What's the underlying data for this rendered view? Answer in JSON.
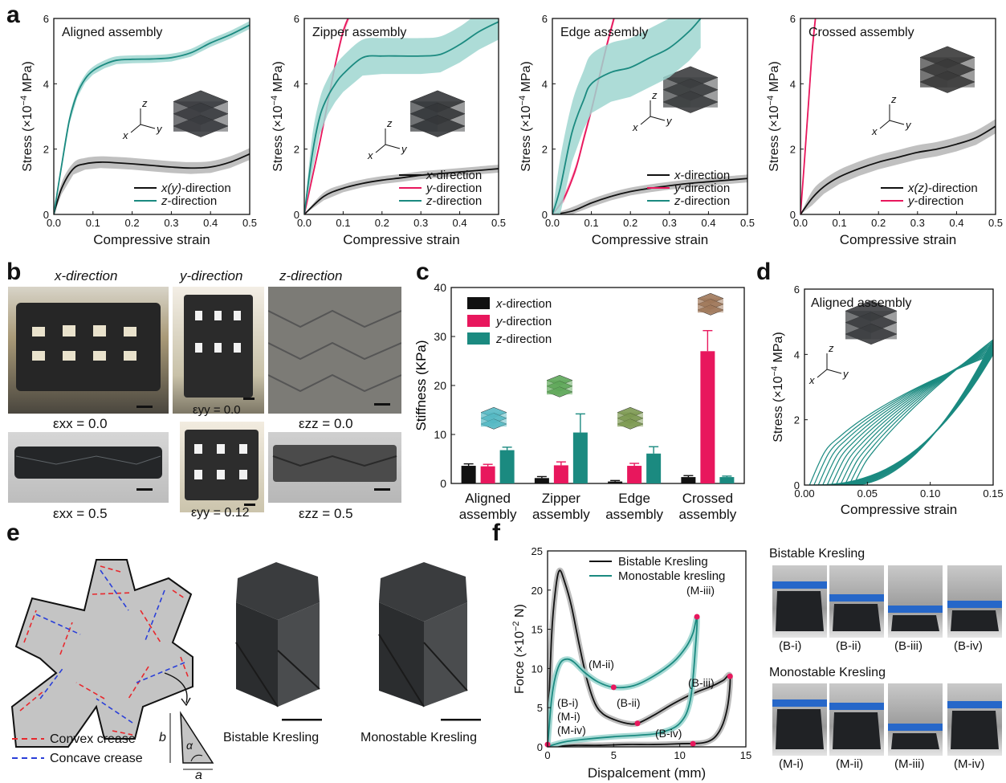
{
  "panels": {
    "a": "a",
    "b": "b",
    "c": "c",
    "d": "d",
    "e": "e",
    "f": "f"
  },
  "common": {
    "xlabel_strain": "Compressive strain",
    "ylabel_stress": "Stress (×10",
    "ylabel_exp": "−4",
    "ylabel_unit": " MPa)",
    "series_colors": {
      "x": "#111111",
      "y": "#e8175d",
      "z": "#1b8a80"
    },
    "band_colors": {
      "x": "#b5b5b5",
      "y": "#f7a8c3",
      "z": "#9fd6d0"
    }
  },
  "chart_data": [
    {
      "id": "a1",
      "type": "line",
      "title": "Aligned assembly",
      "xlabel": "Compressive strain",
      "ylabel": "Stress (×10⁻⁴ MPa)",
      "xlim": [
        0,
        0.5
      ],
      "ylim": [
        0,
        6
      ],
      "xticks": [
        "0.0",
        "0.1",
        "0.2",
        "0.3",
        "0.4",
        "0.5"
      ],
      "yticks": [
        "0",
        "2",
        "4",
        "6"
      ],
      "legend": "bottom-right",
      "series": [
        {
          "name": "x(y)-direction",
          "color": "x",
          "x": [
            0,
            0.02,
            0.05,
            0.08,
            0.12,
            0.16,
            0.2,
            0.25,
            0.3,
            0.35,
            0.4,
            0.45,
            0.5
          ],
          "y": [
            0,
            0.8,
            1.4,
            1.55,
            1.6,
            1.58,
            1.55,
            1.5,
            1.45,
            1.42,
            1.45,
            1.6,
            1.85
          ],
          "band": 0.18
        },
        {
          "name": "z-direction",
          "color": "z",
          "x": [
            0,
            0.02,
            0.04,
            0.06,
            0.08,
            0.1,
            0.13,
            0.16,
            0.2,
            0.25,
            0.3,
            0.35,
            0.4,
            0.45,
            0.5
          ],
          "y": [
            0,
            1.5,
            2.9,
            3.7,
            4.15,
            4.4,
            4.6,
            4.72,
            4.75,
            4.76,
            4.8,
            4.95,
            5.25,
            5.5,
            5.8
          ],
          "band": 0.12
        }
      ]
    },
    {
      "id": "a2",
      "type": "line",
      "title": "Zipper assembly",
      "xlabel": "Compressive strain",
      "ylabel": "Stress (×10⁻⁴ MPa)",
      "xlim": [
        0,
        0.5
      ],
      "ylim": [
        0,
        6
      ],
      "xticks": [
        "0.0",
        "0.1",
        "0.2",
        "0.3",
        "0.4",
        "0.5"
      ],
      "yticks": [
        "0",
        "2",
        "4",
        "6"
      ],
      "legend": "bottom-right",
      "series": [
        {
          "name": "x-direction",
          "color": "x",
          "x": [
            0,
            0.05,
            0.1,
            0.15,
            0.2,
            0.25,
            0.3,
            0.35,
            0.4,
            0.45,
            0.5
          ],
          "y": [
            0,
            0.55,
            0.8,
            0.95,
            1.05,
            1.12,
            1.2,
            1.25,
            1.3,
            1.35,
            1.4
          ],
          "band": 0.12
        },
        {
          "name": "y-direction",
          "color": "y",
          "x": [
            0,
            0.02,
            0.04,
            0.06,
            0.08,
            0.1,
            0.12
          ],
          "y": [
            0,
            1.1,
            2.2,
            3.4,
            4.6,
            5.6,
            6.2
          ],
          "band": 0.1
        },
        {
          "name": "z-direction",
          "color": "z",
          "x": [
            0,
            0.02,
            0.04,
            0.06,
            0.08,
            0.1,
            0.15,
            0.2,
            0.25,
            0.3,
            0.35,
            0.4,
            0.45,
            0.5
          ],
          "y": [
            0,
            1.8,
            3.0,
            3.6,
            4.0,
            4.3,
            4.8,
            4.85,
            4.85,
            4.85,
            4.9,
            5.2,
            5.6,
            5.9
          ],
          "band": 0.55
        }
      ]
    },
    {
      "id": "a3",
      "type": "line",
      "title": "Edge assembly",
      "xlabel": "Compressive strain",
      "ylabel": "Stress (×10⁻⁴ MPa)",
      "xlim": [
        0,
        0.5
      ],
      "ylim": [
        0,
        6
      ],
      "xticks": [
        "0.0",
        "0.1",
        "0.2",
        "0.3",
        "0.4",
        "0.5"
      ],
      "yticks": [
        "0",
        "2",
        "4",
        "6"
      ],
      "legend": "bottom-right",
      "series": [
        {
          "name": "x-direction",
          "color": "x",
          "x": [
            0,
            0.05,
            0.1,
            0.15,
            0.2,
            0.25,
            0.3,
            0.35,
            0.4,
            0.45,
            0.5
          ],
          "y": [
            0,
            0.1,
            0.35,
            0.55,
            0.7,
            0.8,
            0.88,
            0.95,
            1.0,
            1.05,
            1.1
          ],
          "band": 0.12
        },
        {
          "name": "y-direction",
          "color": "y",
          "x": [
            0,
            0.03,
            0.06,
            0.08,
            0.1,
            0.12,
            0.14,
            0.16
          ],
          "y": [
            0,
            0.5,
            1.4,
            2.3,
            3.2,
            4.2,
            5.2,
            6.1
          ],
          "band": 0.12
        },
        {
          "name": "z-direction",
          "color": "z",
          "x": [
            0,
            0.02,
            0.05,
            0.08,
            0.1,
            0.15,
            0.2,
            0.25,
            0.3,
            0.35,
            0.38
          ],
          "y": [
            0,
            0.8,
            2.5,
            3.5,
            4.0,
            4.35,
            4.5,
            4.8,
            5.1,
            5.6,
            6.0
          ],
          "band": 0.9
        }
      ]
    },
    {
      "id": "a4",
      "type": "line",
      "title": "Crossed assembly",
      "xlabel": "Compressive strain",
      "ylabel": "Stress (×10⁻⁴ MPa)",
      "xlim": [
        0,
        0.5
      ],
      "ylim": [
        0,
        6
      ],
      "xticks": [
        "0.0",
        "0.1",
        "0.2",
        "0.3",
        "0.4",
        "0.5"
      ],
      "yticks": [
        "0",
        "2",
        "4",
        "6"
      ],
      "legend": "bottom-right",
      "series": [
        {
          "name": "x(z)-direction",
          "color": "x",
          "x": [
            0,
            0.03,
            0.06,
            0.1,
            0.15,
            0.2,
            0.25,
            0.3,
            0.35,
            0.4,
            0.45,
            0.5
          ],
          "y": [
            0,
            0.5,
            0.85,
            1.15,
            1.4,
            1.6,
            1.75,
            1.9,
            2.0,
            2.15,
            2.35,
            2.7
          ],
          "band": 0.22
        },
        {
          "name": "y-direction",
          "color": "y",
          "x": [
            0,
            0.01,
            0.02,
            0.03,
            0.04
          ],
          "y": [
            0,
            1.6,
            3.3,
            5.0,
            6.2
          ],
          "band": 0.25
        }
      ]
    },
    {
      "id": "c",
      "type": "bar",
      "ylabel": "Stiffness (KPa)",
      "ylim": [
        0,
        40
      ],
      "yticks": [
        "0",
        "10",
        "20",
        "30",
        "40"
      ],
      "categories": [
        [
          "Aligned",
          "assembly"
        ],
        [
          "Zipper",
          "assembly"
        ],
        [
          "Edge",
          "assembly"
        ],
        [
          "Crossed",
          "assembly"
        ]
      ],
      "legend": "top-left",
      "series": [
        {
          "name": "x-direction",
          "color": "x",
          "values": [
            3.6,
            1.1,
            0.4,
            1.3
          ],
          "err": [
            0.4,
            0.3,
            0.2,
            0.3
          ]
        },
        {
          "name": "y-direction",
          "color": "y",
          "values": [
            3.5,
            3.7,
            3.6,
            27.0
          ],
          "err": [
            0.4,
            0.7,
            0.5,
            4.2
          ]
        },
        {
          "name": "z-direction",
          "color": "z",
          "values": [
            6.8,
            10.4,
            6.1,
            1.3
          ],
          "err": [
            0.6,
            3.8,
            1.4,
            0.2
          ]
        }
      ]
    },
    {
      "id": "d",
      "type": "line",
      "title": "Aligned assembly",
      "xlabel": "Compressive strain",
      "ylabel": "Stress (×10⁻⁴ MPa)",
      "xlim": [
        0,
        0.15
      ],
      "ylim": [
        0,
        6
      ],
      "xticks": [
        "0.00",
        "0.05",
        "0.10",
        "0.15"
      ],
      "yticks": [
        "0",
        "2",
        "4",
        "6"
      ]
    },
    {
      "id": "f",
      "type": "line",
      "xlabel": "Dispalcement (mm)",
      "ylabel": "Force (×10",
      "ylabel_exp": "−2",
      "ylabel_unit": " N)",
      "xlim": [
        0,
        15
      ],
      "ylim": [
        0,
        25
      ],
      "xticks": [
        "0",
        "5",
        "10",
        "15"
      ],
      "yticks": [
        "0",
        "5",
        "10",
        "15",
        "20",
        "25"
      ],
      "legend": "top-right",
      "series": [
        {
          "name": "Bistable Kresling",
          "color": "x",
          "x": [
            0,
            0.3,
            0.6,
            0.9,
            1.3,
            1.8,
            2.4,
            3.0,
            3.6,
            4.2,
            5.0,
            6.0,
            6.8,
            8.0,
            9.5,
            11.0,
            12.5,
            13.3,
            13.8,
            13.6,
            13.0,
            12.0,
            10.0,
            8.0,
            6.0,
            4.0,
            2.0,
            1.0,
            0
          ],
          "y": [
            0,
            14,
            20,
            22.5,
            21,
            18,
            13,
            8.5,
            5.5,
            4.2,
            3.5,
            3.0,
            3.0,
            4.0,
            5.5,
            6.8,
            7.8,
            8.5,
            9.0,
            5.0,
            2.0,
            0.6,
            0.4,
            0.3,
            0.3,
            0.2,
            0.2,
            0.1,
            0
          ]
        },
        {
          "name": "Monostable kresling",
          "color": "z",
          "x": [
            0,
            0.3,
            0.6,
            1.0,
            1.5,
            2.0,
            2.8,
            3.8,
            5.0,
            6.5,
            8.0,
            9.5,
            10.5,
            11.0,
            11.3,
            11.2,
            10.8,
            10.0,
            8.5,
            7.0,
            5.0,
            3.0,
            1.5,
            0.5,
            0
          ],
          "y": [
            0,
            6,
            9,
            10.8,
            11.2,
            10.8,
            9.5,
            8.3,
            7.6,
            7.8,
            9.0,
            10.8,
            12.8,
            14.5,
            16.5,
            13,
            6,
            3,
            1.8,
            1.5,
            1.3,
            1.0,
            0.7,
            0.3,
            0
          ]
        }
      ],
      "markers": [
        {
          "label": "(M-iii)",
          "x": 11.3,
          "y": 16.6
        },
        {
          "label": "(M-ii)",
          "x": 5.0,
          "y": 7.6
        },
        {
          "label": "(B-iii)",
          "x": 13.8,
          "y": 9.0
        },
        {
          "label": "(B-ii)",
          "x": 6.8,
          "y": 3.0
        },
        {
          "label": "(B-iv)",
          "x": 11.0,
          "y": 0.4
        },
        {
          "label": "(B-i)(M-i)(M-iv)",
          "x": 0,
          "y": 0.3
        }
      ]
    }
  ],
  "panel_b": {
    "headers": [
      "x-direction",
      "y-direction",
      "z-direction"
    ],
    "strain_top": [
      "εxx = 0.0",
      "εyy = 0.0",
      "εzz = 0.0"
    ],
    "strain_bot": [
      "εxx = 0.5",
      "εyy = 0.12",
      "εzz = 0.5"
    ]
  },
  "panel_e": {
    "legend_convex": "Convex crease",
    "legend_concave": "Concave crease",
    "label_b": "b",
    "label_a": "a",
    "label_alpha": "α",
    "photo_left": "Bistable Kresling",
    "photo_right": "Monostable Kresling"
  },
  "panel_f_photos": {
    "title_top": "Bistable Kresling",
    "title_bot": "Monostable Kresling",
    "top_labels": [
      "(B-i)",
      "(B-ii)",
      "(B-iii)",
      "(B-iv)"
    ],
    "bot_labels": [
      "(M-i)",
      "(M-ii)",
      "(M-iii)",
      "(M-iv)"
    ]
  }
}
